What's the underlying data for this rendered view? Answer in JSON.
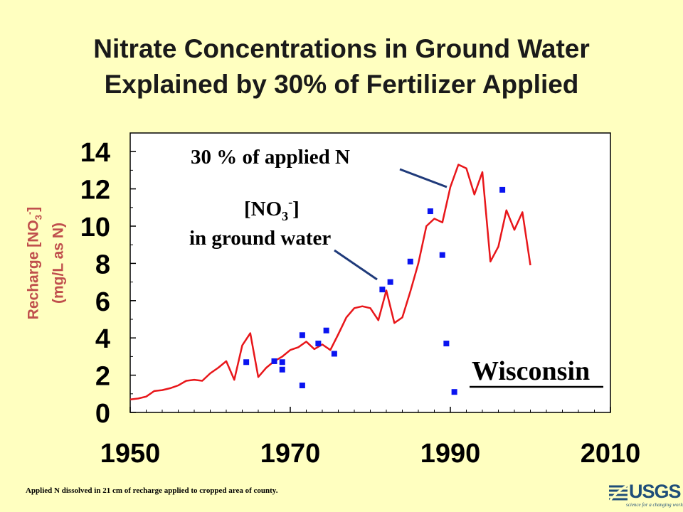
{
  "title": {
    "line1": "Nitrate Concentrations in Ground Water",
    "line2": "Explained by 30% of Fertilizer Applied"
  },
  "ylabel": {
    "line1_prefix": "Recharge [NO",
    "line1_sub": "3",
    "line1_sup": "-",
    "line1_suffix": "]",
    "line2": "(mg/L as N)"
  },
  "annotations": {
    "applied": "30 % of applied N",
    "gw_line1_prefix": "[NO",
    "gw_line1_sub": "3",
    "gw_line1_sup": "-",
    "gw_line1_suffix": "]",
    "gw_line2": "in ground water",
    "state": "Wisconsin"
  },
  "footnote": "Applied N dissolved in 21 cm of recharge applied to cropped area of county.",
  "logo": {
    "word": "USGS",
    "tagline": "science for a changing world"
  },
  "colors": {
    "background": "#FFFFC0",
    "plot_bg": "#FFFFFF",
    "line": "#E8161A",
    "points": "#0A14F0",
    "ylabel": "#C0504D",
    "logo": "#1F4E79"
  },
  "chart_data": {
    "type": "line",
    "title": "Nitrate Concentrations in Ground Water Explained by 30% of Fertilizer Applied",
    "xlabel": "",
    "ylabel": "Recharge [NO3-] (mg/L as N)",
    "xlim": [
      1950,
      2010
    ],
    "ylim": [
      0,
      15
    ],
    "xticks": [
      1950,
      1970,
      1990,
      2010
    ],
    "yticks": [
      0,
      2,
      4,
      6,
      8,
      10,
      12,
      14
    ],
    "grid": false,
    "series": [
      {
        "name": "30 % of applied N",
        "kind": "line",
        "color": "#E8161A",
        "x": [
          1950,
          1951,
          1952,
          1953,
          1954,
          1955,
          1956,
          1957,
          1958,
          1959,
          1960,
          1961,
          1962,
          1963,
          1964,
          1965,
          1966,
          1967,
          1968,
          1969,
          1970,
          1971,
          1972,
          1973,
          1974,
          1975,
          1976,
          1977,
          1978,
          1979,
          1980,
          1981,
          1982,
          1983,
          1984,
          1985,
          1986,
          1987,
          1988,
          1989,
          1990,
          1991,
          1992,
          1993,
          1994,
          1995,
          1996,
          1997,
          1998,
          1999,
          2000
        ],
        "y": [
          0.7,
          0.75,
          0.85,
          1.15,
          1.2,
          1.3,
          1.45,
          1.7,
          1.75,
          1.7,
          2.1,
          2.4,
          2.75,
          1.75,
          3.6,
          4.25,
          1.9,
          2.4,
          2.75,
          3.0,
          3.35,
          3.5,
          3.8,
          3.4,
          3.65,
          3.35,
          4.2,
          5.1,
          5.6,
          5.7,
          5.6,
          4.95,
          6.55,
          4.8,
          5.1,
          6.5,
          8.0,
          10.0,
          10.4,
          10.2,
          12.1,
          13.3,
          13.1,
          11.7,
          12.9,
          8.1,
          8.9,
          10.85,
          9.8,
          10.75,
          7.9
        ]
      },
      {
        "name": "[NO3-] in ground water",
        "kind": "scatter",
        "color": "#0A14F0",
        "x": [
          1964.5,
          1968.0,
          1969.0,
          1969.0,
          1971.5,
          1971.5,
          1973.5,
          1974.5,
          1975.5,
          1981.5,
          1982.5,
          1985.0,
          1987.5,
          1989.0,
          1989.5,
          1990.5,
          1996.5
        ],
        "y": [
          2.7,
          2.75,
          2.7,
          2.3,
          4.15,
          1.45,
          3.7,
          4.4,
          3.15,
          6.6,
          7.0,
          8.1,
          10.8,
          8.45,
          3.7,
          1.1,
          11.95
        ]
      }
    ]
  }
}
